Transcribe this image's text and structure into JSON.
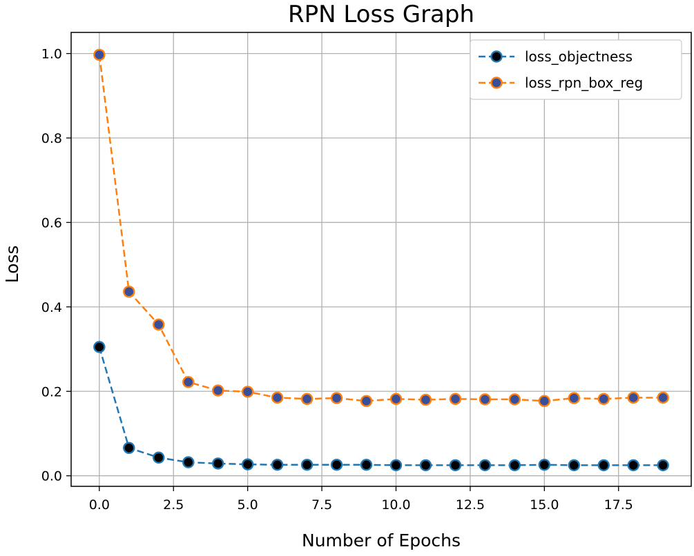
{
  "chart_data": {
    "type": "line",
    "title": "RPN Loss Graph",
    "xlabel": "Number of Epochs",
    "ylabel": "Loss",
    "xlim": [
      -0.95,
      19.95
    ],
    "ylim": [
      -0.025,
      1.05
    ],
    "grid": true,
    "legend_position": "top-right",
    "x": [
      0,
      1,
      2,
      3,
      4,
      5,
      6,
      7,
      8,
      9,
      10,
      11,
      12,
      13,
      14,
      15,
      16,
      17,
      18,
      19
    ],
    "xticks": [
      0.0,
      2.5,
      5.0,
      7.5,
      10.0,
      12.5,
      15.0,
      17.5
    ],
    "xtick_labels": [
      "0.0",
      "2.5",
      "5.0",
      "7.5",
      "10.0",
      "12.5",
      "15.0",
      "17.5"
    ],
    "yticks": [
      0.0,
      0.2,
      0.4,
      0.6,
      0.8,
      1.0
    ],
    "ytick_labels": [
      "0.0",
      "0.2",
      "0.4",
      "0.6",
      "0.8",
      "1.0"
    ],
    "series": [
      {
        "name": "loss_objectness",
        "line_color": "#1f77b4",
        "marker_face": "#000000",
        "marker_edge": "#1f77b4",
        "values": [
          0.305,
          0.066,
          0.043,
          0.032,
          0.029,
          0.027,
          0.026,
          0.026,
          0.026,
          0.026,
          0.025,
          0.025,
          0.025,
          0.025,
          0.025,
          0.026,
          0.025,
          0.025,
          0.025,
          0.025
        ]
      },
      {
        "name": "loss_rpn_box_reg",
        "line_color": "#ff7f0e",
        "marker_face": "#3a4f9a",
        "marker_edge": "#ff7f0e",
        "values": [
          0.997,
          0.436,
          0.358,
          0.222,
          0.202,
          0.199,
          0.185,
          0.182,
          0.184,
          0.177,
          0.182,
          0.18,
          0.182,
          0.181,
          0.181,
          0.177,
          0.184,
          0.182,
          0.185,
          0.185
        ]
      }
    ]
  }
}
